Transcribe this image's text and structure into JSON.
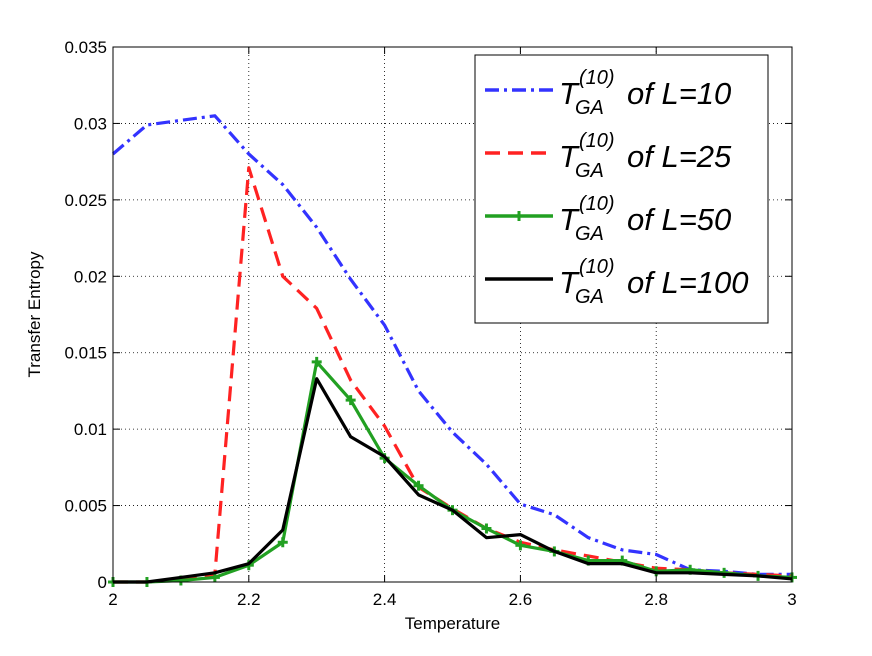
{
  "chart_data": {
    "type": "line",
    "title": "",
    "xlabel": "Temperature",
    "ylabel": "Transfer Entropy",
    "xlim": [
      2,
      3
    ],
    "ylim": [
      0,
      0.035
    ],
    "grid": true,
    "legend_position": "top-right",
    "x_ticks": [
      "2",
      "2.2",
      "2.4",
      "2.6",
      "2.8",
      "3"
    ],
    "y_ticks": [
      "0",
      "0.005",
      "0.01",
      "0.015",
      "0.02",
      "0.025",
      "0.03",
      "0.035"
    ],
    "x": [
      2.0,
      2.05,
      2.1,
      2.15,
      2.2,
      2.25,
      2.3,
      2.35,
      2.4,
      2.45,
      2.5,
      2.55,
      2.6,
      2.65,
      2.7,
      2.75,
      2.8,
      2.85,
      2.9,
      2.95,
      3.0
    ],
    "series": [
      {
        "name": "T_GA^(10) of L=10",
        "legend_base": "T",
        "legend_sup": "(10)",
        "legend_sub": "GA",
        "legend_suffix": "of L=10",
        "color": "#3333ff",
        "style": "dashdot",
        "marker": "none",
        "values": [
          0.028,
          0.0299,
          0.0302,
          0.0305,
          0.028,
          0.026,
          0.0232,
          0.0198,
          0.0168,
          0.0125,
          0.0098,
          0.0077,
          0.0051,
          0.0044,
          0.0029,
          0.0021,
          0.0018,
          0.0008,
          0.0007,
          0.0005,
          0.0005
        ]
      },
      {
        "name": "T_GA^(10) of L=25",
        "legend_base": "T",
        "legend_sup": "(10)",
        "legend_sub": "GA",
        "legend_suffix": "of L=25",
        "color": "#ff2222",
        "style": "dashed",
        "marker": "none",
        "values": [
          0.0,
          0.0,
          0.0002,
          0.0005,
          0.0271,
          0.02,
          0.0179,
          0.0132,
          0.0102,
          0.0062,
          0.0048,
          0.0035,
          0.0026,
          0.0021,
          0.0017,
          0.0013,
          0.0009,
          0.0008,
          0.0006,
          0.0005,
          0.0004
        ]
      },
      {
        "name": "T_GA^(10) of L=50",
        "legend_base": "T",
        "legend_sup": "(10)",
        "legend_sub": "GA",
        "legend_suffix": "of L=50",
        "color": "#22a022",
        "style": "solid",
        "marker": "plus",
        "values": [
          0.0,
          0.0,
          0.0001,
          0.0003,
          0.0011,
          0.0026,
          0.0144,
          0.0119,
          0.0081,
          0.0063,
          0.0047,
          0.0035,
          0.0024,
          0.002,
          0.0014,
          0.0014,
          0.0007,
          0.0008,
          0.0006,
          0.0004,
          0.0003
        ]
      },
      {
        "name": "T_GA^(10) of L=100",
        "legend_base": "T",
        "legend_sup": "(10)",
        "legend_sub": "GA",
        "legend_suffix": "of L=100",
        "color": "#000000",
        "style": "solid",
        "marker": "none",
        "values": [
          0.0,
          0.0,
          0.0003,
          0.0006,
          0.0012,
          0.0034,
          0.0133,
          0.0095,
          0.0082,
          0.0057,
          0.0047,
          0.0029,
          0.0031,
          0.002,
          0.0012,
          0.0012,
          0.0006,
          0.0006,
          0.0005,
          0.0004,
          0.0002
        ]
      }
    ]
  }
}
